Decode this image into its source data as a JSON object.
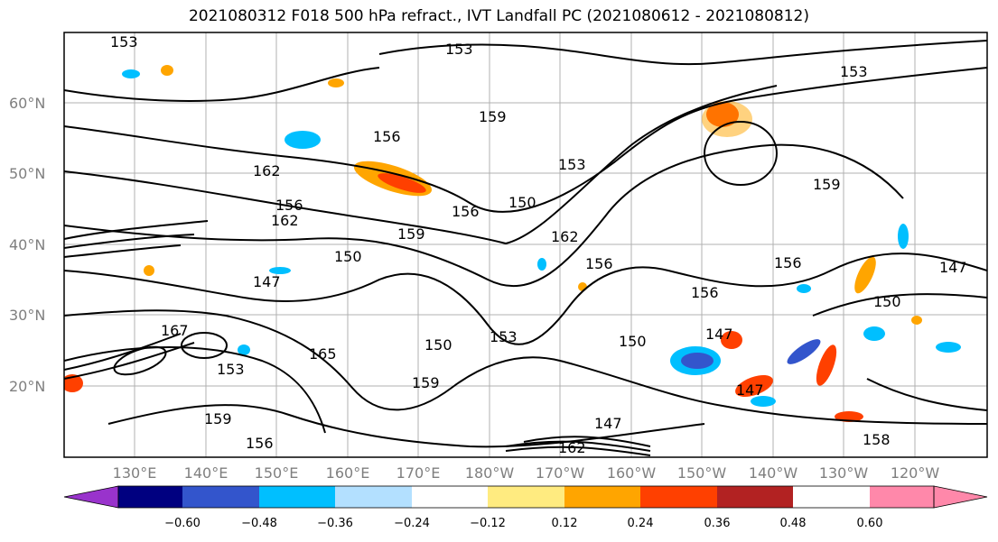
{
  "title": "2021080312 F018 500 hPa refract., IVT Landfall PC (2021080612 - 2021080812)",
  "lat_labels": [
    "60°N",
    "50°N",
    "40°N",
    "30°N",
    "20°N"
  ],
  "lon_labels": [
    "130°E",
    "140°E",
    "150°E",
    "160°E",
    "170°E",
    "180°W",
    "170°W",
    "160°W",
    "150°W",
    "140°W",
    "130°W",
    "120°W"
  ],
  "colorbar": {
    "colors": [
      "#9933cc",
      "#000080",
      "#3355cc",
      "#00bfff",
      "#b3e0ff",
      "#ffffff",
      "#ffeb80",
      "#ffa500",
      "#ff4000",
      "#b22222",
      "#ff88aa"
    ],
    "tick_labels": [
      "−0.60",
      "−0.48",
      "−0.36",
      "−0.24",
      "−0.12",
      "0.12",
      "0.24",
      "0.36",
      "0.48",
      "0.60"
    ]
  },
  "contour_labels": [
    "153",
    "153",
    "156",
    "156",
    "156",
    "159",
    "159",
    "159",
    "162",
    "162",
    "153",
    "150",
    "150",
    "147",
    "147",
    "147",
    "156",
    "156",
    "165",
    "150",
    "153",
    "153",
    "150",
    "147",
    "159",
    "162",
    "156",
    "159",
    "156",
    "167",
    "153",
    "158",
    "150",
    "162",
    "147"
  ]
}
